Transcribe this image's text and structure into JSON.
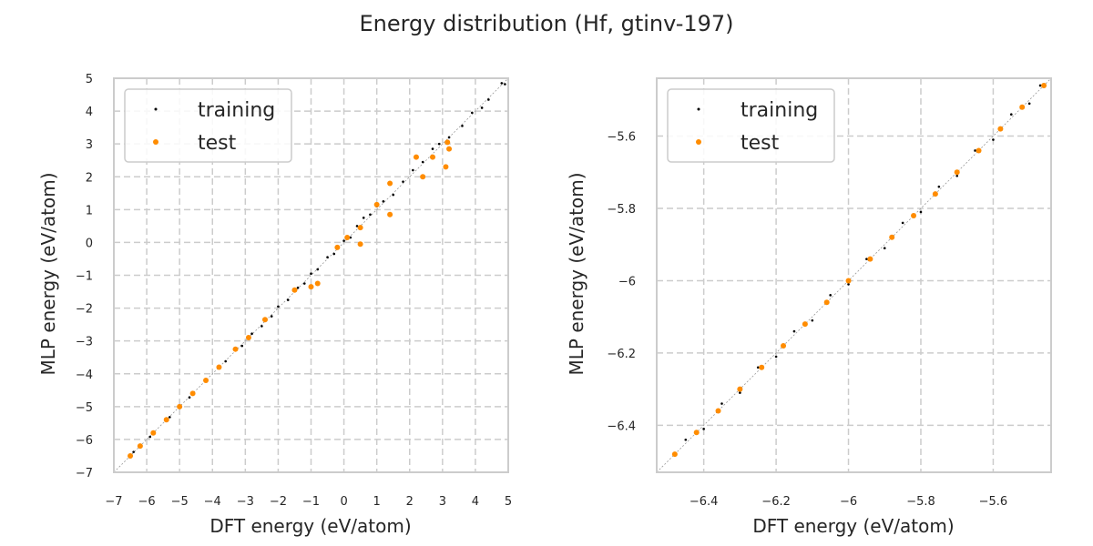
{
  "figure": {
    "title": "Energy distribution (Hf, gtinv-197)"
  },
  "colors": {
    "training": "#000000",
    "test": "#ff8c00",
    "grid": "#cccccc",
    "frame": "#cccccc",
    "diagonal": "#999999"
  },
  "chart_data": [
    {
      "type": "scatter",
      "xlabel": "DFT energy (eV/atom)",
      "ylabel": "MLP energy (eV/atom)",
      "xlim": [
        -7,
        5
      ],
      "ylim": [
        -7,
        5
      ],
      "xticks": [
        -7,
        -6,
        -5,
        -4,
        -3,
        -2,
        -1,
        0,
        1,
        2,
        3,
        4,
        5
      ],
      "yticks": [
        -7,
        -6,
        -5,
        -4,
        -3,
        -2,
        -1,
        0,
        1,
        2,
        3,
        4,
        5
      ],
      "grid": true,
      "legend": {
        "position": "top-left",
        "entries": [
          "training",
          "test"
        ]
      },
      "diagonal": true,
      "series": [
        {
          "name": "training",
          "color": "#000000",
          "points": [
            [
              -6.4,
              -6.38
            ],
            [
              -5.9,
              -5.92
            ],
            [
              -5.3,
              -5.32
            ],
            [
              -4.7,
              -4.72
            ],
            [
              -4.2,
              -4.18
            ],
            [
              -3.6,
              -3.62
            ],
            [
              -3.1,
              -3.15
            ],
            [
              -2.8,
              -2.78
            ],
            [
              -2.5,
              -2.55
            ],
            [
              -2.2,
              -2.25
            ],
            [
              -2.0,
              -1.95
            ],
            [
              -1.7,
              -1.75
            ],
            [
              -1.4,
              -1.38
            ],
            [
              -1.2,
              -1.25
            ],
            [
              -1.0,
              -0.95
            ],
            [
              -0.8,
              -0.82
            ],
            [
              -0.5,
              -0.45
            ],
            [
              -0.3,
              -0.35
            ],
            [
              0.0,
              0.05
            ],
            [
              0.2,
              0.15
            ],
            [
              0.4,
              0.5
            ],
            [
              0.6,
              0.75
            ],
            [
              0.8,
              0.85
            ],
            [
              1.0,
              1.1
            ],
            [
              1.2,
              1.25
            ],
            [
              1.5,
              1.45
            ],
            [
              1.8,
              1.85
            ],
            [
              2.1,
              2.2
            ],
            [
              2.4,
              2.45
            ],
            [
              2.7,
              2.85
            ],
            [
              2.9,
              3.0
            ],
            [
              3.2,
              3.2
            ],
            [
              3.6,
              3.55
            ],
            [
              3.9,
              3.95
            ],
            [
              4.2,
              4.1
            ],
            [
              4.4,
              4.35
            ],
            [
              4.8,
              4.85
            ],
            [
              4.9,
              4.82
            ]
          ]
        },
        {
          "name": "test",
          "color": "#ff8c00",
          "points": [
            [
              -6.5,
              -6.5
            ],
            [
              -6.2,
              -6.2
            ],
            [
              -5.8,
              -5.8
            ],
            [
              -5.4,
              -5.4
            ],
            [
              -5.0,
              -5.0
            ],
            [
              -4.6,
              -4.6
            ],
            [
              -4.2,
              -4.2
            ],
            [
              -3.8,
              -3.8
            ],
            [
              -3.3,
              -3.25
            ],
            [
              -2.9,
              -2.9
            ],
            [
              -2.4,
              -2.35
            ],
            [
              -1.5,
              -1.45
            ],
            [
              -1.0,
              -1.35
            ],
            [
              -0.8,
              -1.25
            ],
            [
              -0.2,
              -0.15
            ],
            [
              0.1,
              0.15
            ],
            [
              0.5,
              -0.05
            ],
            [
              0.5,
              0.45
            ],
            [
              1.0,
              1.15
            ],
            [
              1.4,
              0.85
            ],
            [
              1.4,
              1.8
            ],
            [
              2.2,
              2.6
            ],
            [
              2.4,
              2.0
            ],
            [
              3.1,
              2.3
            ],
            [
              3.15,
              3.05
            ],
            [
              3.2,
              2.85
            ],
            [
              2.7,
              2.6
            ]
          ]
        }
      ]
    },
    {
      "type": "scatter",
      "xlabel": "DFT energy (eV/atom)",
      "ylabel": "MLP energy (eV/atom)",
      "xlim": [
        -6.53,
        -5.44
      ],
      "ylim": [
        -6.53,
        -5.44
      ],
      "xticks": [
        -6.4,
        -6.2,
        -6.0,
        -5.8,
        -5.6
      ],
      "yticks": [
        -6.4,
        -6.2,
        -6.0,
        -5.8,
        -5.6
      ],
      "grid": true,
      "legend": {
        "position": "top-left",
        "entries": [
          "training",
          "test"
        ]
      },
      "diagonal": true,
      "series": [
        {
          "name": "training",
          "color": "#000000",
          "points": [
            [
              -6.45,
              -6.44
            ],
            [
              -6.4,
              -6.41
            ],
            [
              -6.35,
              -6.34
            ],
            [
              -6.3,
              -6.31
            ],
            [
              -6.25,
              -6.24
            ],
            [
              -6.2,
              -6.21
            ],
            [
              -6.15,
              -6.14
            ],
            [
              -6.1,
              -6.11
            ],
            [
              -6.05,
              -6.04
            ],
            [
              -6.0,
              -6.01
            ],
            [
              -5.95,
              -5.94
            ],
            [
              -5.9,
              -5.91
            ],
            [
              -5.85,
              -5.84
            ],
            [
              -5.8,
              -5.81
            ],
            [
              -5.75,
              -5.74
            ],
            [
              -5.7,
              -5.71
            ],
            [
              -5.65,
              -5.64
            ],
            [
              -5.6,
              -5.61
            ],
            [
              -5.55,
              -5.54
            ],
            [
              -5.5,
              -5.51
            ],
            [
              -5.47,
              -5.46
            ]
          ]
        },
        {
          "name": "test",
          "color": "#ff8c00",
          "points": [
            [
              -6.48,
              -6.48
            ],
            [
              -6.42,
              -6.42
            ],
            [
              -6.36,
              -6.36
            ],
            [
              -6.3,
              -6.3
            ],
            [
              -6.24,
              -6.24
            ],
            [
              -6.18,
              -6.18
            ],
            [
              -6.12,
              -6.12
            ],
            [
              -6.06,
              -6.06
            ],
            [
              -6.0,
              -6.0
            ],
            [
              -5.94,
              -5.94
            ],
            [
              -5.88,
              -5.88
            ],
            [
              -5.82,
              -5.82
            ],
            [
              -5.76,
              -5.76
            ],
            [
              -5.7,
              -5.7
            ],
            [
              -5.64,
              -5.64
            ],
            [
              -5.58,
              -5.58
            ],
            [
              -5.52,
              -5.52
            ],
            [
              -5.46,
              -5.46
            ]
          ]
        }
      ]
    }
  ]
}
